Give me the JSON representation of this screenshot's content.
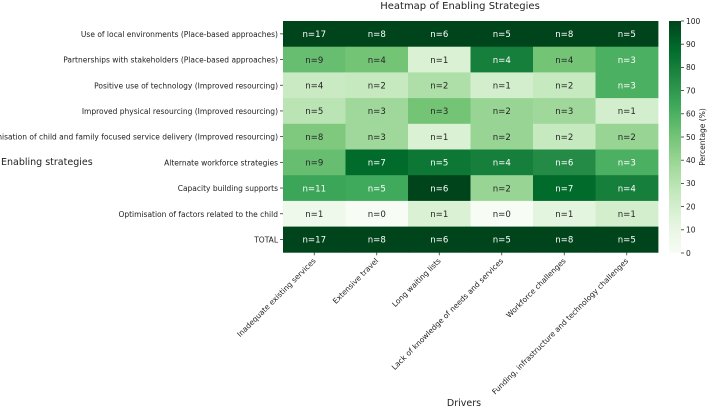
{
  "chart_data": {
    "type": "heatmap",
    "title": "Heatmap of Enabling Strategies",
    "xlabel": "Drivers",
    "ylabel": "Enabling strategies",
    "columns": [
      "Inadequate existing services",
      "Extensive travel",
      "Long waiting lists",
      "Lack of knowledge of needs and services",
      "Workforce challenges",
      "Funding, infrastructure and technology challenges"
    ],
    "rows": [
      "Use of local environments (Place-based approaches)",
      "Partnerships with stakeholders (Place-based approaches)",
      "Positive use of technology (Improved resourcing)",
      "Improved physical resourcing (Improved resourcing)",
      "Optimisation of child and family focused service delivery (Improved resourcing)",
      "Alternate workforce strategies",
      "Capacity building supports",
      "Optimisation of factors related to the child",
      "TOTAL"
    ],
    "cell_labels": [
      [
        "n=17",
        "n=8",
        "n=6",
        "n=5",
        "n=8",
        "n=5"
      ],
      [
        "n=9",
        "n=4",
        "n=1",
        "n=4",
        "n=4",
        "n=3"
      ],
      [
        "n=4",
        "n=2",
        "n=2",
        "n=1",
        "n=2",
        "n=3"
      ],
      [
        "n=5",
        "n=3",
        "n=3",
        "n=2",
        "n=3",
        "n=1"
      ],
      [
        "n=8",
        "n=3",
        "n=1",
        "n=2",
        "n=2",
        "n=2"
      ],
      [
        "n=9",
        "n=7",
        "n=5",
        "n=4",
        "n=6",
        "n=3"
      ],
      [
        "n=11",
        "n=5",
        "n=6",
        "n=2",
        "n=7",
        "n=4"
      ],
      [
        "n=1",
        "n=0",
        "n=1",
        "n=0",
        "n=1",
        "n=1"
      ],
      [
        "n=17",
        "n=8",
        "n=6",
        "n=5",
        "n=8",
        "n=5"
      ]
    ],
    "percent_values": [
      [
        100,
        100,
        100,
        100,
        100,
        100
      ],
      [
        53,
        50,
        17,
        80,
        50,
        60
      ],
      [
        24,
        25,
        33,
        20,
        25,
        60
      ],
      [
        29,
        38,
        50,
        40,
        38,
        20
      ],
      [
        47,
        38,
        17,
        40,
        25,
        40
      ],
      [
        53,
        88,
        83,
        80,
        75,
        60
      ],
      [
        65,
        63,
        100,
        40,
        88,
        80
      ],
      [
        6,
        0,
        17,
        0,
        13,
        20
      ],
      [
        100,
        100,
        100,
        100,
        100,
        100
      ]
    ],
    "colorbar": {
      "label": "Percentage (%)",
      "range": [
        0,
        100
      ],
      "ticks": [
        0,
        10,
        20,
        30,
        40,
        50,
        60,
        70,
        80,
        90,
        100
      ],
      "colormap": "Greens"
    }
  }
}
